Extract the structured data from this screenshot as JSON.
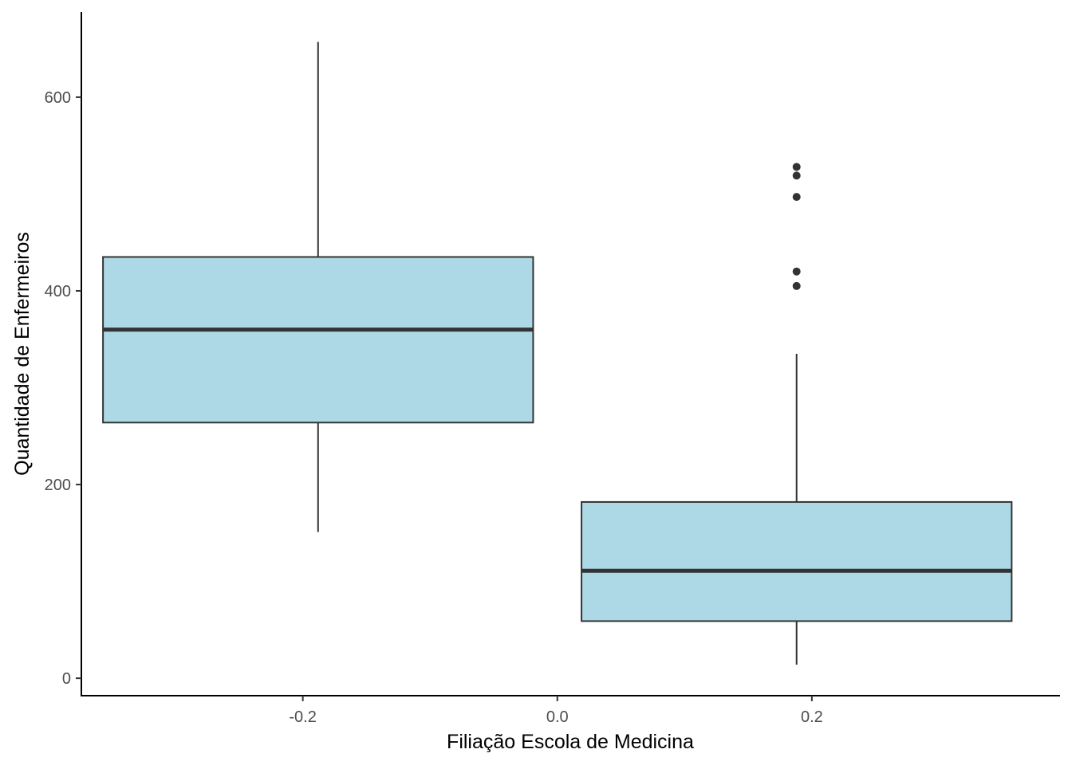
{
  "chart_data": {
    "type": "boxplot",
    "title": "",
    "xlabel": "Filiação Escola de Medicina",
    "ylabel": "Quantidade de Enfermeiros",
    "xlim": [
      -0.374,
      0.395
    ],
    "ylim": [
      -18,
      688
    ],
    "x_ticks": [
      -0.2,
      0.0,
      0.2
    ],
    "x_tick_labels": [
      "-0.2",
      "0.0",
      "0.2"
    ],
    "y_ticks": [
      0,
      200,
      400,
      600
    ],
    "y_tick_labels": [
      "0",
      "200",
      "400",
      "600"
    ],
    "grid": false,
    "legend": "none",
    "box_fill": "#add8e6",
    "box_stroke": "#333333",
    "boxes": [
      {
        "xmin": -0.357,
        "xmax": -0.019,
        "whisker_x": -0.188,
        "whisker_low": 151,
        "q1": 264,
        "median": 360,
        "q3": 435,
        "whisker_high": 657,
        "outliers": []
      },
      {
        "xmin": 0.019,
        "xmax": 0.357,
        "whisker_x": 0.188,
        "whisker_low": 14,
        "q1": 59,
        "median": 111,
        "q3": 182,
        "whisker_high": 335,
        "outliers": [
          405,
          420,
          497,
          519,
          528
        ]
      }
    ]
  }
}
